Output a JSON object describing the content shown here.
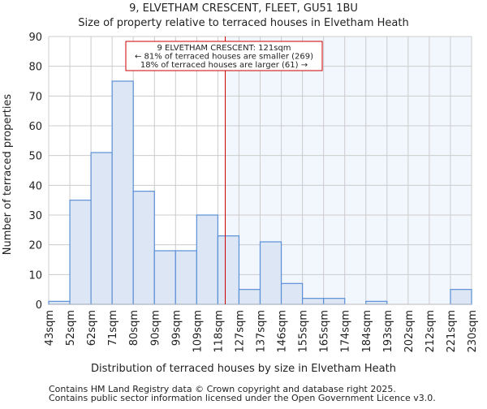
{
  "chart_data": {
    "type": "bar",
    "title": "9, ELVETHAM CRESCENT, FLEET, GU51 1BU",
    "subtitle": "Size of property relative to terraced houses in Elvetham Heath",
    "xlabel": "Distribution of terraced houses by size in Elvetham Heath",
    "ylabel": "Number of terraced properties",
    "ylim": [
      0,
      90
    ],
    "yticks": [
      0,
      10,
      20,
      30,
      40,
      50,
      60,
      70,
      80,
      90
    ],
    "tick_labels": [
      "43sqm",
      "52sqm",
      "62sqm",
      "71sqm",
      "80sqm",
      "90sqm",
      "99sqm",
      "109sqm",
      "118sqm",
      "127sqm",
      "137sqm",
      "146sqm",
      "155sqm",
      "165sqm",
      "174sqm",
      "184sqm",
      "193sqm",
      "202sqm",
      "212sqm",
      "221sqm",
      "230sqm"
    ],
    "values": [
      1,
      35,
      51,
      75,
      38,
      18,
      18,
      30,
      23,
      5,
      21,
      7,
      2,
      2,
      0,
      1,
      0,
      0,
      0,
      5
    ],
    "marker_position_bins": 8.35,
    "annotation": [
      "9 ELVETHAM CRESCENT: 121sqm",
      "← 81% of terraced houses are smaller (269)",
      "18% of terraced houses are larger (61) →"
    ],
    "grid": true,
    "colors": {
      "bar_fill": "#dce6f4",
      "bar_stroke": "#5b8fd6",
      "marker": "#cc0000",
      "highlight_bg": "#f2f6fd"
    }
  },
  "footer": [
    "Contains HM Land Registry data © Crown copyright and database right 2025.",
    "Contains public sector information licensed under the Open Government Licence v3.0."
  ]
}
